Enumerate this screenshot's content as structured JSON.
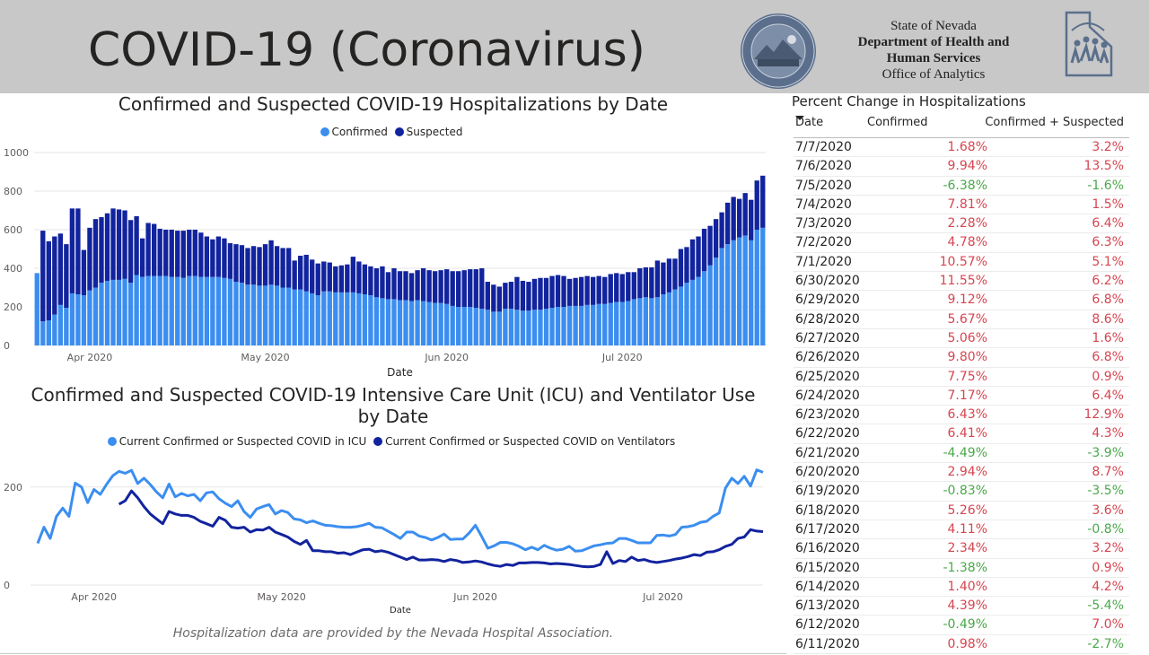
{
  "header": {
    "title": "COVID-19 (Coronavirus)",
    "agency_line1": "State of Nevada",
    "agency_line2": "Department of Health and",
    "agency_line3": "Human Services",
    "agency_line4": "Office of Analytics",
    "seal_text": "THE GREAT SEAL OF THE STATE OF NEVADA",
    "logo_text": "DHHS"
  },
  "footnote": "Hospitalization data are provided by the Nevada Hospital Association.",
  "colors": {
    "confirmed": "#3b8ef0",
    "suspected": "#12239e",
    "header_bg": "#c8c8c8",
    "positive": "#d64550",
    "negative": "#4aa84a"
  },
  "chart_data": [
    {
      "type": "bar",
      "stacked": true,
      "title": "Confirmed and Suspected COVID-19 Hospitalizations by Date",
      "xlabel": "Date",
      "ylabel": "",
      "ylim": [
        0,
        1000
      ],
      "y_ticks": [
        0,
        200,
        400,
        600,
        800,
        1000
      ],
      "x_tick_labels": [
        "Apr 2020",
        "May 2020",
        "Jun 2020",
        "Jul 2020"
      ],
      "legend": [
        "Confirmed",
        "Suspected"
      ],
      "legend_position": "top-center",
      "start_date": "2020-03-23",
      "series": [
        {
          "name": "Confirmed",
          "values": [
            375,
            125,
            130,
            160,
            210,
            195,
            270,
            265,
            260,
            285,
            300,
            325,
            335,
            340,
            340,
            345,
            325,
            365,
            355,
            360,
            360,
            360,
            360,
            355,
            355,
            350,
            360,
            360,
            355,
            355,
            355,
            355,
            350,
            345,
            330,
            325,
            315,
            315,
            310,
            310,
            315,
            310,
            300,
            300,
            290,
            290,
            280,
            270,
            260,
            280,
            280,
            275,
            275,
            275,
            275,
            270,
            265,
            260,
            250,
            245,
            240,
            240,
            235,
            235,
            230,
            235,
            230,
            225,
            220,
            220,
            215,
            205,
            200,
            200,
            200,
            195,
            190,
            185,
            175,
            175,
            190,
            190,
            185,
            180,
            180,
            185,
            185,
            190,
            195,
            200,
            200,
            205,
            205,
            205,
            210,
            210,
            215,
            215,
            220,
            225,
            225,
            230,
            240,
            245,
            250,
            245,
            250,
            265,
            275,
            290,
            305,
            325,
            340,
            355,
            385,
            415,
            455,
            505,
            525,
            545,
            560,
            570,
            545,
            600,
            610
          ]
        },
        {
          "name": "Suspected",
          "values": [
            0,
            470,
            410,
            405,
            370,
            330,
            440,
            445,
            235,
            325,
            355,
            340,
            350,
            370,
            365,
            355,
            325,
            305,
            200,
            275,
            270,
            245,
            240,
            245,
            240,
            245,
            240,
            240,
            230,
            210,
            195,
            210,
            205,
            185,
            195,
            195,
            190,
            200,
            200,
            215,
            230,
            205,
            205,
            205,
            150,
            175,
            190,
            175,
            165,
            155,
            150,
            135,
            140,
            145,
            185,
            165,
            155,
            150,
            150,
            165,
            140,
            160,
            150,
            150,
            145,
            155,
            170,
            165,
            165,
            170,
            180,
            180,
            185,
            190,
            195,
            200,
            210,
            145,
            140,
            130,
            135,
            140,
            170,
            155,
            150,
            160,
            165,
            160,
            165,
            165,
            160,
            140,
            145,
            150,
            150,
            145,
            145,
            140,
            150,
            150,
            145,
            150,
            140,
            155,
            155,
            160,
            190,
            165,
            175,
            160,
            195,
            185,
            210,
            210,
            220,
            205,
            200,
            185,
            215,
            225,
            200,
            220,
            210,
            255,
            270
          ]
        }
      ]
    },
    {
      "type": "line",
      "title_line1": "Confirmed and Suspected COVID-19 Intensive Care Unit (ICU) and Ventilator Use",
      "title_line2": "by Date",
      "xlabel": "Date",
      "ylabel": "",
      "ylim": [
        0,
        260
      ],
      "y_ticks": [
        0,
        200
      ],
      "x_tick_labels": [
        "Apr 2020",
        "May 2020",
        "Jun 2020",
        "Jul 2020"
      ],
      "legend": [
        "Current Confirmed or Suspected COVID in ICU",
        "Current Confirmed or Suspected COVID on Ventilators"
      ],
      "legend_position": "top-center",
      "start_date": "2020-03-23",
      "series": [
        {
          "name": "Current Confirmed or Suspected COVID in ICU",
          "values": [
            85,
            118,
            95,
            140,
            157,
            140,
            208,
            200,
            168,
            195,
            185,
            205,
            223,
            232,
            228,
            234,
            207,
            218,
            205,
            190,
            178,
            206,
            180,
            187,
            182,
            185,
            172,
            188,
            190,
            176,
            167,
            160,
            172,
            150,
            138,
            155,
            160,
            164,
            145,
            152,
            148,
            135,
            133,
            127,
            131,
            126,
            122,
            121,
            119,
            118,
            118,
            119,
            122,
            126,
            118,
            117,
            110,
            103,
            95,
            108,
            108,
            100,
            97,
            92,
            97,
            104,
            93,
            94,
            94,
            106,
            122,
            99,
            75,
            80,
            87,
            87,
            84,
            79,
            72,
            77,
            72,
            81,
            75,
            71,
            73,
            79,
            69,
            70,
            75,
            80,
            82,
            85,
            86,
            95,
            95,
            91,
            86,
            86,
            86,
            101,
            102,
            100,
            103,
            118,
            119,
            122,
            128,
            130,
            140,
            147,
            198,
            218,
            207,
            222,
            202,
            235,
            230
          ]
        },
        {
          "name": "Current Confirmed or Suspected COVID on Ventilators",
          "values": [
            null,
            null,
            null,
            null,
            null,
            null,
            null,
            null,
            null,
            null,
            null,
            null,
            null,
            165,
            172,
            192,
            178,
            160,
            145,
            135,
            125,
            150,
            145,
            142,
            142,
            138,
            130,
            125,
            120,
            138,
            132,
            118,
            116,
            118,
            108,
            113,
            112,
            118,
            108,
            103,
            98,
            89,
            83,
            91,
            70,
            70,
            68,
            68,
            65,
            66,
            62,
            67,
            72,
            73,
            68,
            70,
            67,
            62,
            57,
            52,
            57,
            51,
            51,
            52,
            51,
            48,
            52,
            50,
            46,
            47,
            49,
            47,
            43,
            40,
            38,
            42,
            40,
            45,
            45,
            46,
            46,
            45,
            43,
            44,
            43,
            42,
            40,
            38,
            37,
            38,
            42,
            68,
            44,
            50,
            48,
            57,
            50,
            52,
            48,
            46,
            48,
            50,
            53,
            55,
            58,
            62,
            60,
            67,
            68,
            72,
            79,
            83,
            95,
            98,
            113,
            110,
            109
          ]
        }
      ]
    },
    {
      "type": "table",
      "title": "Percent Change in Hospitalizations",
      "columns": [
        "Date",
        "Confirmed",
        "Confirmed + Suspected"
      ],
      "rows": [
        [
          "7/7/2020",
          "1.68%",
          "3.2%"
        ],
        [
          "7/6/2020",
          "9.94%",
          "13.5%"
        ],
        [
          "7/5/2020",
          "-6.38%",
          "-1.6%"
        ],
        [
          "7/4/2020",
          "7.81%",
          "1.5%"
        ],
        [
          "7/3/2020",
          "2.28%",
          "6.4%"
        ],
        [
          "7/2/2020",
          "4.78%",
          "6.3%"
        ],
        [
          "7/1/2020",
          "10.57%",
          "5.1%"
        ],
        [
          "6/30/2020",
          "11.55%",
          "6.2%"
        ],
        [
          "6/29/2020",
          "9.12%",
          "6.8%"
        ],
        [
          "6/28/2020",
          "5.67%",
          "8.6%"
        ],
        [
          "6/27/2020",
          "5.06%",
          "1.6%"
        ],
        [
          "6/26/2020",
          "9.80%",
          "6.8%"
        ],
        [
          "6/25/2020",
          "7.75%",
          "0.9%"
        ],
        [
          "6/24/2020",
          "7.17%",
          "6.4%"
        ],
        [
          "6/23/2020",
          "6.43%",
          "12.9%"
        ],
        [
          "6/22/2020",
          "6.41%",
          "4.3%"
        ],
        [
          "6/21/2020",
          "-4.49%",
          "-3.9%"
        ],
        [
          "6/20/2020",
          "2.94%",
          "8.7%"
        ],
        [
          "6/19/2020",
          "-0.83%",
          "-3.5%"
        ],
        [
          "6/18/2020",
          "5.26%",
          "3.6%"
        ],
        [
          "6/17/2020",
          "4.11%",
          "-0.8%"
        ],
        [
          "6/16/2020",
          "2.34%",
          "3.2%"
        ],
        [
          "6/15/2020",
          "-1.38%",
          "0.9%"
        ],
        [
          "6/14/2020",
          "1.40%",
          "4.2%"
        ],
        [
          "6/13/2020",
          "4.39%",
          "-5.4%"
        ],
        [
          "6/12/2020",
          "-0.49%",
          "7.0%"
        ],
        [
          "6/11/2020",
          "0.98%",
          "-2.7%"
        ]
      ]
    }
  ]
}
